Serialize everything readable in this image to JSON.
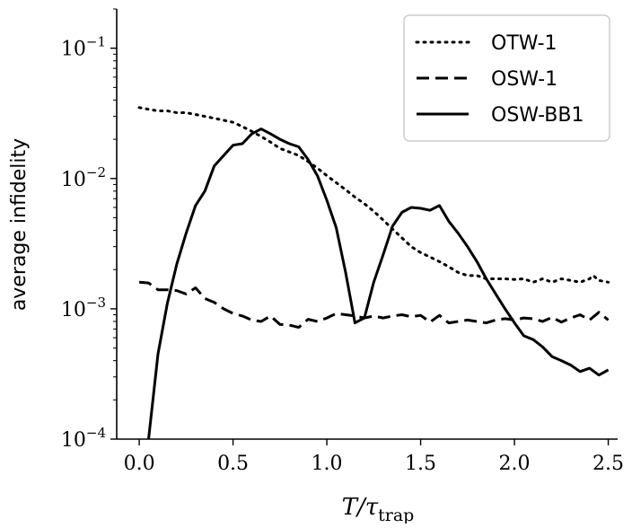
{
  "chart_data": {
    "type": "line",
    "xlabel": "T/τ_trap",
    "ylabel": "average infidelity",
    "y_scale": "log",
    "xlim": [
      -0.12,
      2.55
    ],
    "ylim": [
      0.0001,
      0.2
    ],
    "x_ticks": [
      0.0,
      0.5,
      1.0,
      1.5,
      2.0,
      2.5
    ],
    "x_tick_labels": [
      "0.0",
      "0.5",
      "1.0",
      "1.5",
      "2.0",
      "2.5"
    ],
    "y_ticks": [
      0.0001,
      0.001,
      0.01,
      0.1
    ],
    "y_tick_labels": [
      {
        "base": "10",
        "exp": "−4"
      },
      {
        "base": "10",
        "exp": "−3"
      },
      {
        "base": "10",
        "exp": "−2"
      },
      {
        "base": "10",
        "exp": "−1"
      }
    ],
    "grid": false,
    "legend_position": "top-right",
    "colors": {
      "line": "#000000",
      "legend_border": "#cccccc"
    },
    "series": [
      {
        "name": "OTW-1",
        "style": "dotted",
        "x": [
          0.0,
          0.05,
          0.1,
          0.15,
          0.2,
          0.25,
          0.3,
          0.35,
          0.4,
          0.45,
          0.5,
          0.55,
          0.6,
          0.65,
          0.7,
          0.75,
          0.8,
          0.85,
          0.9,
          0.95,
          1.0,
          1.05,
          1.1,
          1.15,
          1.2,
          1.25,
          1.3,
          1.35,
          1.4,
          1.45,
          1.5,
          1.55,
          1.6,
          1.65,
          1.7,
          1.75,
          1.8,
          1.85,
          1.9,
          1.95,
          2.0,
          2.05,
          2.1,
          2.15,
          2.2,
          2.25,
          2.3,
          2.35,
          2.4,
          2.42,
          2.45,
          2.5
        ],
        "y": [
          0.035,
          0.034,
          0.033,
          0.033,
          0.032,
          0.032,
          0.031,
          0.03,
          0.029,
          0.028,
          0.027,
          0.025,
          0.023,
          0.021,
          0.019,
          0.017,
          0.016,
          0.015,
          0.0135,
          0.012,
          0.0105,
          0.0093,
          0.0082,
          0.0072,
          0.0064,
          0.0056,
          0.0048,
          0.0041,
          0.0035,
          0.003,
          0.0027,
          0.0025,
          0.0023,
          0.0021,
          0.0019,
          0.0018,
          0.0018,
          0.0017,
          0.0017,
          0.0017,
          0.00168,
          0.0017,
          0.0016,
          0.0017,
          0.0016,
          0.0017,
          0.00165,
          0.0016,
          0.0017,
          0.0018,
          0.00165,
          0.0016
        ]
      },
      {
        "name": "OSW-1",
        "style": "dashed",
        "x": [
          0.0,
          0.05,
          0.1,
          0.15,
          0.2,
          0.25,
          0.3,
          0.35,
          0.4,
          0.45,
          0.5,
          0.55,
          0.6,
          0.65,
          0.7,
          0.75,
          0.8,
          0.85,
          0.9,
          0.95,
          1.0,
          1.05,
          1.1,
          1.15,
          1.2,
          1.25,
          1.3,
          1.35,
          1.4,
          1.45,
          1.5,
          1.55,
          1.6,
          1.65,
          1.7,
          1.75,
          1.8,
          1.85,
          1.9,
          1.95,
          2.0,
          2.05,
          2.1,
          2.15,
          2.2,
          2.25,
          2.3,
          2.35,
          2.4,
          2.45,
          2.5
        ],
        "y": [
          0.0016,
          0.00158,
          0.0014,
          0.0014,
          0.00138,
          0.0013,
          0.00145,
          0.0012,
          0.00112,
          0.001,
          0.00092,
          0.00088,
          0.00082,
          0.0008,
          0.00088,
          0.00076,
          0.00075,
          0.00072,
          0.00083,
          0.0008,
          0.00085,
          0.00092,
          0.0009,
          0.00088,
          0.00085,
          0.00088,
          0.00085,
          0.00088,
          0.0009,
          0.00087,
          0.00089,
          0.00079,
          0.00089,
          0.00078,
          0.0008,
          0.00082,
          0.0008,
          0.00078,
          0.00082,
          0.00084,
          0.00082,
          0.00085,
          0.00084,
          0.0008,
          0.00086,
          0.00079,
          0.00085,
          0.0009,
          0.00082,
          0.00094,
          0.00082
        ]
      },
      {
        "name": "OSW-BB1",
        "style": "solid",
        "x": [
          0.05,
          0.1,
          0.15,
          0.2,
          0.25,
          0.3,
          0.35,
          0.4,
          0.45,
          0.5,
          0.55,
          0.6,
          0.65,
          0.7,
          0.75,
          0.8,
          0.85,
          0.9,
          0.95,
          1.0,
          1.05,
          1.1,
          1.15,
          1.2,
          1.25,
          1.3,
          1.35,
          1.4,
          1.45,
          1.5,
          1.55,
          1.6,
          1.65,
          1.7,
          1.75,
          1.8,
          1.85,
          1.9,
          1.95,
          2.0,
          2.05,
          2.1,
          2.15,
          2.2,
          2.25,
          2.3,
          2.35,
          2.4,
          2.45,
          2.5
        ],
        "y": [
          0.0001,
          0.00045,
          0.0011,
          0.0022,
          0.0038,
          0.0062,
          0.008,
          0.0125,
          0.015,
          0.018,
          0.0185,
          0.022,
          0.024,
          0.022,
          0.02,
          0.0185,
          0.0175,
          0.014,
          0.0105,
          0.0068,
          0.0042,
          0.0019,
          0.00078,
          0.00085,
          0.0016,
          0.0026,
          0.0043,
          0.0055,
          0.006,
          0.0059,
          0.0057,
          0.0062,
          0.0047,
          0.0038,
          0.003,
          0.0023,
          0.0017,
          0.0013,
          0.001,
          0.00078,
          0.00062,
          0.00058,
          0.00051,
          0.00043,
          0.0004,
          0.00037,
          0.00033,
          0.00035,
          0.00031,
          0.00034
        ]
      }
    ]
  }
}
